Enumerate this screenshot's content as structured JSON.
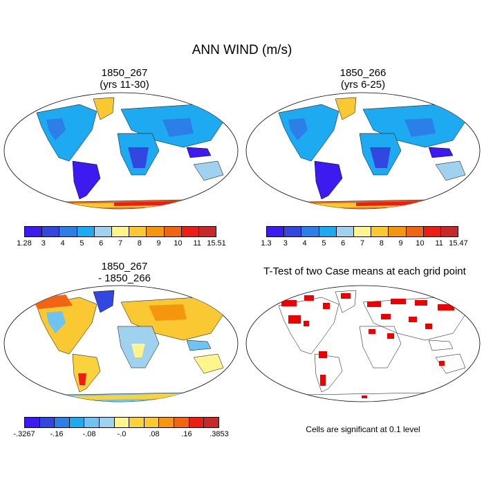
{
  "title": "ANN WIND (m/s)",
  "panels": {
    "top_left": {
      "title_line1": "1850_267",
      "title_line2": "(yrs 11-30)"
    },
    "top_right": {
      "title_line1": "1850_266",
      "title_line2": "(yrs 6-25)"
    },
    "bottom_left": {
      "title_line1": "1850_267",
      "title_line2": "- 1850_266"
    },
    "bottom_right": {
      "title": "T-Test of two Case means at each grid point",
      "note": "Cells are significant at 0.1 level"
    }
  },
  "colorbars": {
    "top_left": {
      "labels": [
        "1.28",
        "3",
        "4",
        "5",
        "6",
        "7",
        "8",
        "9",
        "10",
        "11",
        "15.51"
      ],
      "colors": [
        "#3c1af0",
        "#3246e0",
        "#2d7fe8",
        "#1eaaf0",
        "#a0d2f0",
        "#fff58c",
        "#fac832",
        "#f5960f",
        "#f06414",
        "#ec1e14",
        "#c82828"
      ]
    },
    "top_right": {
      "labels": [
        "1.3",
        "3",
        "4",
        "5",
        "6",
        "7",
        "8",
        "9",
        "10",
        "11",
        "15.47"
      ],
      "colors": [
        "#3c1af0",
        "#3246e0",
        "#2d7fe8",
        "#1eaaf0",
        "#a0d2f0",
        "#fff58c",
        "#fac832",
        "#f5960f",
        "#f06414",
        "#ec1e14",
        "#c82828"
      ]
    },
    "bottom_left": {
      "labels": [
        "-.3267",
        "-.16",
        "-.08",
        "-.0",
        ".08",
        ".16",
        ".3853"
      ],
      "colors": [
        "#3c1af0",
        "#3246e0",
        "#2d7fe8",
        "#1eaaf0",
        "#6ec3f0",
        "#a0d2f0",
        "#fff58c",
        "#fad23c",
        "#fac832",
        "#f5960f",
        "#f06414",
        "#ec1e14",
        "#c82828"
      ]
    }
  }
}
